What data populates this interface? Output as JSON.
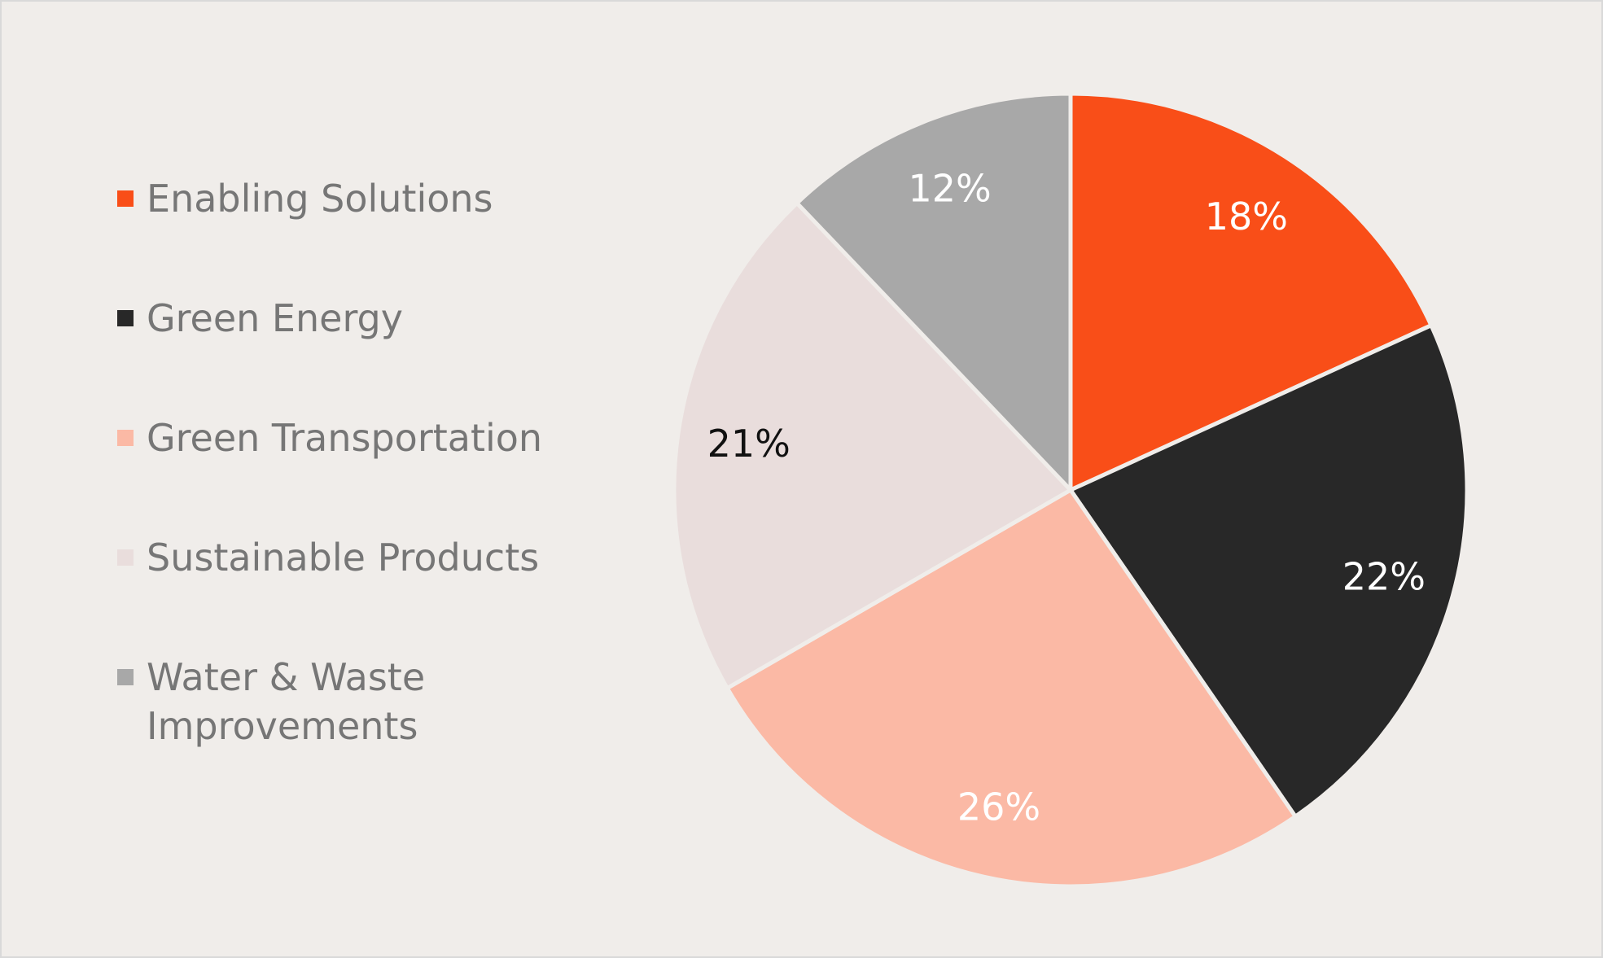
{
  "chart_data": {
    "type": "pie",
    "title": "",
    "legend_position": "left",
    "slices": [
      {
        "label": "Enabling Solutions",
        "value": 18,
        "value_label": "18%",
        "color": "#f94e18",
        "label_color": "#ffffff"
      },
      {
        "label": "Green Energy",
        "value": 22,
        "value_label": "22%",
        "color": "#282828",
        "label_color": "#ffffff"
      },
      {
        "label": "Green Transportation",
        "value": 26,
        "value_label": "26%",
        "color": "#fbb9a5",
        "label_color": "#ffffff"
      },
      {
        "label": "Sustainable Products",
        "value": 21,
        "value_label": "21%",
        "color": "#e9dddc",
        "label_color": "#111111"
      },
      {
        "label": "Water & Waste Improvements",
        "value": 12,
        "value_label": "12%",
        "color": "#a8a8a8",
        "label_color": "#ffffff"
      }
    ]
  }
}
